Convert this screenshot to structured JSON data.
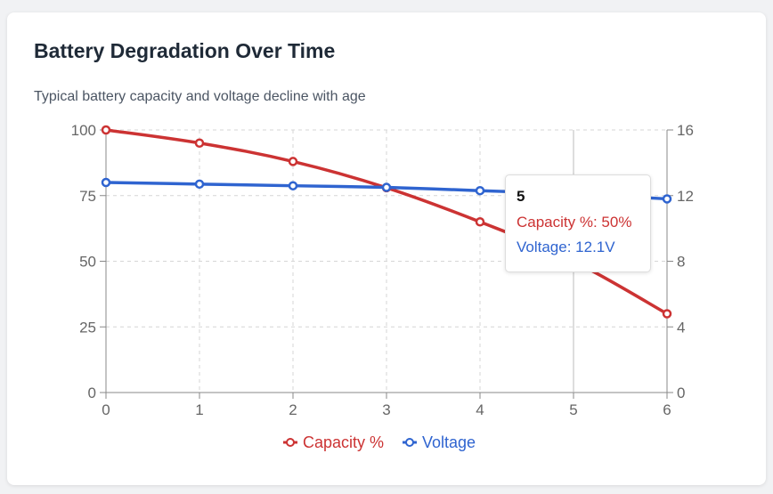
{
  "card": {
    "title": "Battery Degradation Over Time",
    "subtitle": "Typical battery capacity and voltage decline with age"
  },
  "chart_data": {
    "type": "line",
    "x": [
      0,
      1,
      2,
      3,
      4,
      5,
      6
    ],
    "xlim": [
      0,
      6
    ],
    "y_left_lim": [
      0,
      100
    ],
    "y_right_lim": [
      0,
      16
    ],
    "y_left_ticks": [
      0,
      25,
      50,
      75,
      100
    ],
    "y_right_ticks": [
      0,
      4,
      8,
      12,
      16
    ],
    "grid": true,
    "legend": "bottom",
    "series": [
      {
        "name": "Capacity %",
        "axis": "left",
        "color": "#cc3333",
        "values": [
          100,
          95,
          88,
          78,
          65,
          50,
          30
        ]
      },
      {
        "name": "Voltage",
        "axis": "right",
        "color": "#2f64d0",
        "values": [
          12.8,
          12.7,
          12.6,
          12.5,
          12.3,
          12.1,
          11.8
        ]
      }
    ]
  },
  "tooltip": {
    "title": "5",
    "rows": [
      "Capacity %: 50%",
      "Voltage: 12.1V"
    ]
  }
}
